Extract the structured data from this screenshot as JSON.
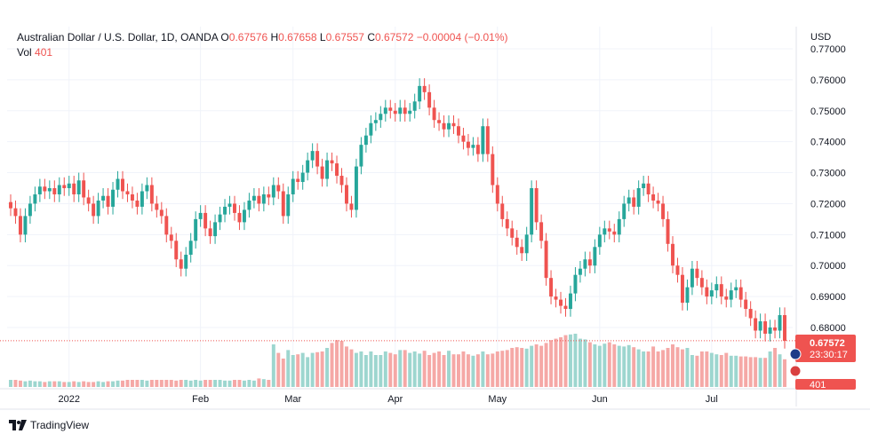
{
  "legend": {
    "symbol": "Australian Dollar / U.S. Dollar, 1D, OANDA",
    "o_label": "O",
    "o": "0.67576",
    "h_label": "H",
    "h": "0.67658",
    "l_label": "L",
    "l": "0.67557",
    "c_label": "C",
    "c": "0.67572",
    "change": "−0.00004 (−0.01%)",
    "vol_label": "Vol",
    "vol": "401"
  },
  "axis": {
    "currency": "USD",
    "price_ticks": [
      "0.77000",
      "0.76000",
      "0.75000",
      "0.74000",
      "0.73000",
      "0.72000",
      "0.71000",
      "0.70000",
      "0.69000",
      "0.68000"
    ],
    "time_ticks": [
      "2022",
      "Feb",
      "Mar",
      "Apr",
      "May",
      "Jun",
      "Jul"
    ]
  },
  "badges": {
    "price": "0.67572",
    "countdown": "23:30:17",
    "volume": "401"
  },
  "brand": {
    "name": "TradingView"
  },
  "colors": {
    "up": "#26a69a",
    "down": "#ef5350",
    "up_vol": "#9dd6cf",
    "down_vol": "#f5a8a6",
    "grid": "#f0f3fa",
    "text": "#131722"
  },
  "chart_data": {
    "type": "candlestick",
    "title": "Australian Dollar / U.S. Dollar, 1D, OANDA",
    "ylabel": "USD",
    "ylim": [
      0.66,
      0.775
    ],
    "grid": true,
    "last_price": 0.67572,
    "series": [
      {
        "name": "AUD/USD",
        "close": [
          0.7185,
          0.716,
          0.71,
          0.716,
          0.72,
          0.723,
          0.7255,
          0.724,
          0.725,
          0.723,
          0.726,
          0.725,
          0.7265,
          0.723,
          0.7275,
          0.722,
          0.72,
          0.716,
          0.721,
          0.7225,
          0.719,
          0.7245,
          0.728,
          0.724,
          0.723,
          0.721,
          0.719,
          0.724,
          0.726,
          0.72,
          0.718,
          0.716,
          0.71,
          0.708,
          0.702,
          0.699,
          0.7035,
          0.708,
          0.715,
          0.717,
          0.712,
          0.7095,
          0.714,
          0.7165,
          0.719,
          0.72,
          0.717,
          0.714,
          0.718,
          0.721,
          0.7225,
          0.72,
          0.723,
          0.722,
          0.726,
          0.724,
          0.716,
          0.723,
          0.728,
          0.727,
          0.73,
          0.734,
          0.737,
          0.732,
          0.728,
          0.734,
          0.733,
          0.729,
          0.726,
          0.72,
          0.718,
          0.732,
          0.739,
          0.742,
          0.746,
          0.747,
          0.749,
          0.751,
          0.75,
          0.749,
          0.751,
          0.749,
          0.75,
          0.753,
          0.758,
          0.756,
          0.751,
          0.747,
          0.746,
          0.744,
          0.746,
          0.745,
          0.742,
          0.74,
          0.738,
          0.739,
          0.736,
          0.745,
          0.736,
          0.726,
          0.72,
          0.715,
          0.712,
          0.709,
          0.706,
          0.704,
          0.71,
          0.725,
          0.714,
          0.708,
          0.696,
          0.69,
          0.689,
          0.687,
          0.686,
          0.691,
          0.697,
          0.699,
          0.702,
          0.7,
          0.706,
          0.71,
          0.712,
          0.711,
          0.71,
          0.715,
          0.72,
          0.722,
          0.719,
          0.725,
          0.7265,
          0.723,
          0.721,
          0.72,
          0.715,
          0.707,
          0.7,
          0.697,
          0.688,
          0.693,
          0.699,
          0.696,
          0.693,
          0.69,
          0.692,
          0.694,
          0.69,
          0.689,
          0.692,
          0.693,
          0.689,
          0.686,
          0.683,
          0.679,
          0.682,
          0.678,
          0.68,
          0.679,
          0.684,
          0.6757
        ],
        "volume": [
          70,
          70,
          69,
          68,
          69,
          68,
          68,
          67,
          68,
          68,
          68,
          67,
          67,
          68,
          67,
          68,
          67,
          67,
          68,
          67,
          68,
          68,
          69,
          69,
          70,
          70,
          70,
          70,
          69,
          70,
          70,
          70,
          70,
          70,
          69,
          70,
          70,
          69,
          70,
          69,
          70,
          70,
          70,
          70,
          69,
          69,
          70,
          70,
          69,
          70,
          69,
          72,
          71,
          70,
          120,
          108,
          100,
          112,
          105,
          106,
          108,
          102,
          108,
          109,
          110,
          115,
          122,
          126,
          125,
          117,
          113,
          108,
          110,
          105,
          110,
          105,
          105,
          110,
          108,
          106,
          112,
          112,
          108,
          110,
          107,
          111,
          105,
          108,
          110,
          105,
          111,
          106,
          106,
          110,
          106,
          104,
          106,
          110,
          106,
          107,
          110,
          111,
          112,
          115,
          116,
          115,
          114,
          118,
          120,
          118,
          122,
          126,
          128,
          130,
          133,
          134,
          135,
          128,
          127,
          123,
          120,
          118,
          121,
          123,
          120,
          118,
          117,
          119,
          116,
          113,
          110,
          110,
          117,
          110,
          112,
          115,
          120,
          116,
          113,
          115,
          105,
          104,
          110,
          110,
          108,
          106,
          105,
          108,
          104,
          104,
          103,
          103,
          102,
          102,
          101,
          101,
          110,
          115,
          106,
          99
        ]
      }
    ]
  }
}
